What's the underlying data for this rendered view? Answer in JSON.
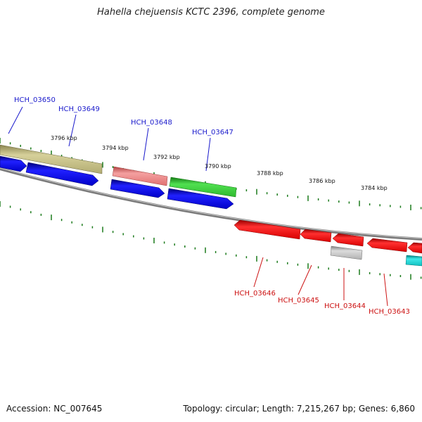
{
  "title": "Hahella chejuensis KCTC 2396, complete genome",
  "accession": "Accession: NC_007645",
  "summary": "Topology: circular; Length: 7,215,267 bp; Genes: 6,860",
  "scale_labels": [
    "3796 kbp",
    "3794 kbp",
    "3792 kbp",
    "3790 kbp",
    "3788 kbp",
    "3786 kbp",
    "3784 kbp"
  ],
  "forward_gene_labels": [
    "HCH_03650",
    "HCH_03649",
    "HCH_03648",
    "HCH_03647"
  ],
  "reverse_gene_labels": [
    "HCH_03646",
    "HCH_03645",
    "HCH_03644",
    "HCH_03643"
  ],
  "colors": {
    "forward_label": "#1a1acc",
    "reverse_label": "#cc1111",
    "tick": "#1a7a1a",
    "backbone": "#888888"
  }
}
